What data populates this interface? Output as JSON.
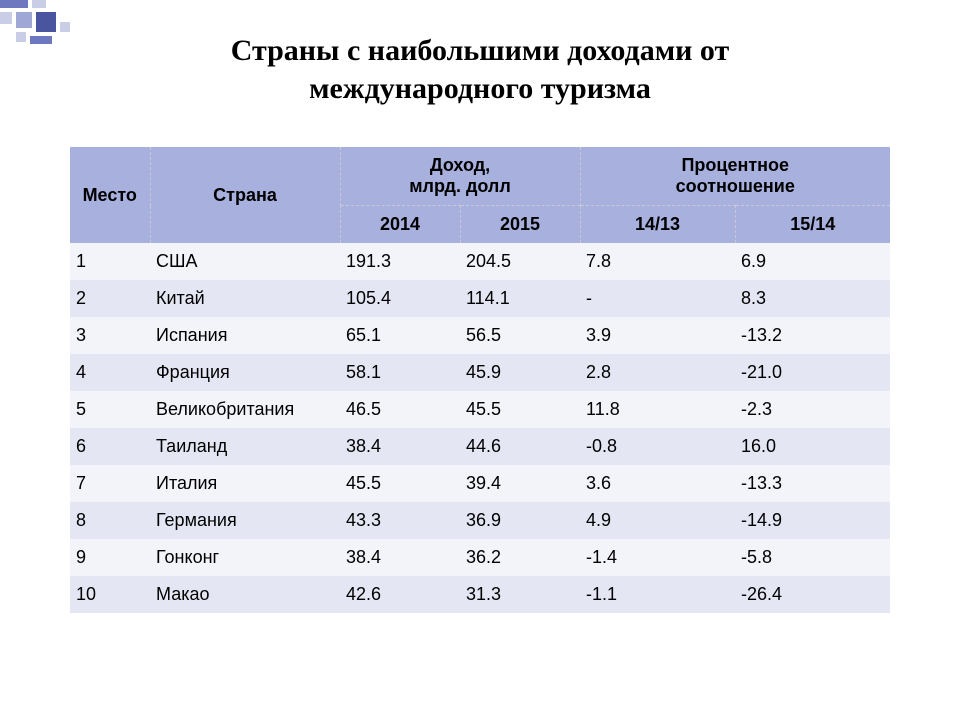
{
  "title_line1": "Страны с наибольшими доходами от",
  "title_line2": "международного туризма",
  "title_fontsize": 30,
  "decor": {
    "colors": {
      "light": "#c9cde6",
      "mid": "#9fa7d6",
      "dark": "#6d78bf",
      "darker": "#4a55a0"
    }
  },
  "table": {
    "header_bg": "#a8b0de",
    "header_fontsize": 18,
    "sub_fontsize": 18,
    "body_fontsize": 18,
    "row_colors": {
      "odd": "#f3f4fa",
      "even": "#e4e7f3"
    },
    "text_color": "#000000",
    "columns": {
      "rank": "Место",
      "country": "Страна",
      "income": "Доход,\nмлрд. долл",
      "percent": "Процентное\nсоотношение",
      "year1": "2014",
      "year2": "2015",
      "p1": "14/13",
      "p2": "15/14"
    },
    "rows": [
      {
        "rank": "1",
        "country": "США",
        "y1": "191.3",
        "y2": "204.5",
        "p1": "7.8",
        "p2": "6.9"
      },
      {
        "rank": "2",
        "country": "Китай",
        "y1": "105.4",
        "y2": "114.1",
        "p1": "-",
        "p2": "8.3"
      },
      {
        "rank": "3",
        "country": "Испания",
        "y1": "65.1",
        "y2": "56.5",
        "p1": "3.9",
        "p2": "-13.2"
      },
      {
        "rank": "4",
        "country": "Франция",
        "y1": "58.1",
        "y2": "45.9",
        "p1": "2.8",
        "p2": "-21.0"
      },
      {
        "rank": "5",
        "country": "Великобритания",
        "y1": "46.5",
        "y2": "45.5",
        "p1": "11.8",
        "p2": "-2.3"
      },
      {
        "rank": "6",
        "country": "Таиланд",
        "y1": "38.4",
        "y2": "44.6",
        "p1": "-0.8",
        "p2": "16.0"
      },
      {
        "rank": "7",
        "country": "Италия",
        "y1": "45.5",
        "y2": "39.4",
        "p1": "3.6",
        "p2": "-13.3"
      },
      {
        "rank": "8",
        "country": "Германия",
        "y1": "43.3",
        "y2": "36.9",
        "p1": "4.9",
        "p2": "-14.9"
      },
      {
        "rank": "9",
        "country": "Гонконг",
        "y1": "38.4",
        "y2": "36.2",
        "p1": "-1.4",
        "p2": "-5.8"
      },
      {
        "rank": "10",
        "country": "Макао",
        "y1": "42.6",
        "y2": "31.3",
        "p1": "-1.1",
        "p2": "-26.4"
      }
    ]
  }
}
